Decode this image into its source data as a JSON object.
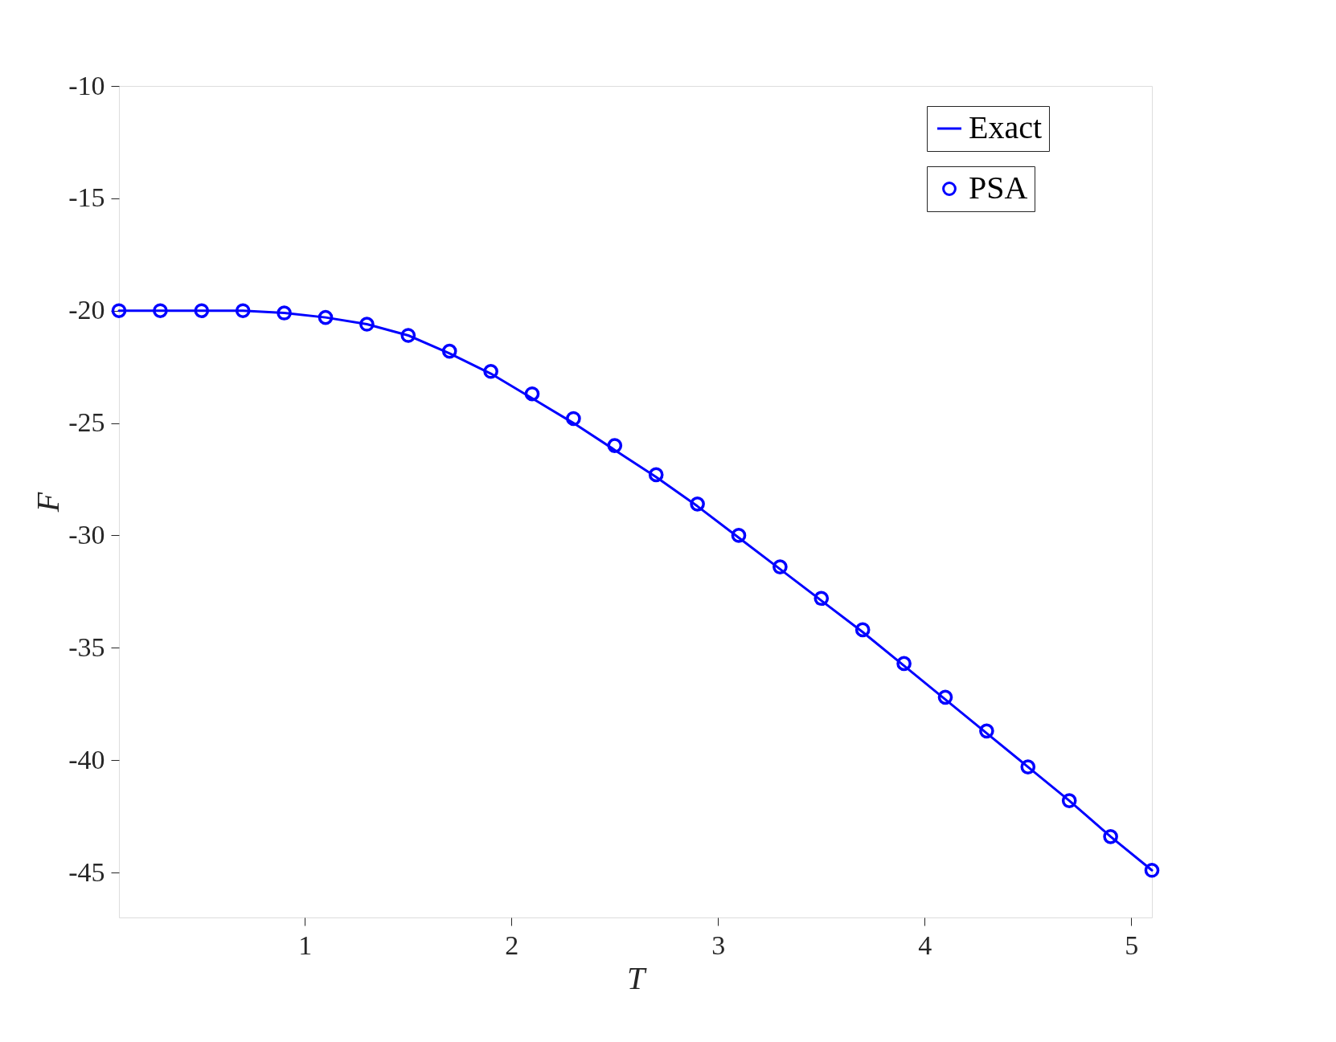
{
  "chart_data": {
    "type": "line",
    "xlabel": "T",
    "ylabel": "F",
    "xlim": [
      0.1,
      5.1
    ],
    "ylim": [
      -47,
      -10
    ],
    "xticks": [
      1,
      2,
      3,
      4,
      5
    ],
    "yticks": [
      -45,
      -40,
      -35,
      -30,
      -25,
      -20,
      -15,
      -10
    ],
    "grid": false,
    "legend": "top right",
    "series": [
      {
        "name": "Exact",
        "color": "#0000ff",
        "marker": "none",
        "line_style": "solid",
        "x": [
          0.1,
          0.3,
          0.5,
          0.7,
          0.9,
          1.1,
          1.3,
          1.5,
          1.7,
          1.9,
          2.1,
          2.3,
          2.5,
          2.7,
          2.9,
          3.1,
          3.3,
          3.5,
          3.7,
          3.9,
          4.1,
          4.3,
          4.5,
          4.7,
          4.9,
          5.1
        ],
        "values": [
          -20.0,
          -20.0,
          -20.0,
          -20.0,
          -20.1,
          -20.3,
          -20.6,
          -21.1,
          -21.9,
          -22.8,
          -23.9,
          -25.0,
          -26.2,
          -27.4,
          -28.7,
          -30.1,
          -31.5,
          -32.9,
          -34.3,
          -35.8,
          -37.3,
          -38.8,
          -40.3,
          -41.8,
          -43.4,
          -44.9
        ]
      },
      {
        "name": "PSA",
        "type": "scatter",
        "color": "#0000ff",
        "marker": "circle",
        "x": [
          0.1,
          0.3,
          0.5,
          0.7,
          0.9,
          1.1,
          1.3,
          1.5,
          1.7,
          1.9,
          2.1,
          2.3,
          2.5,
          2.7,
          2.9,
          3.1,
          3.3,
          3.5,
          3.7,
          3.9,
          4.1,
          4.3,
          4.5,
          4.7,
          4.9,
          5.1
        ],
        "values": [
          -20.0,
          -20.0,
          -20.0,
          -20.0,
          -20.1,
          -20.3,
          -20.6,
          -21.1,
          -21.8,
          -22.7,
          -23.7,
          -24.8,
          -26.0,
          -27.3,
          -28.6,
          -30.0,
          -31.4,
          -32.8,
          -34.2,
          -35.7,
          -37.2,
          -38.7,
          -40.3,
          -41.8,
          -43.4,
          -44.9
        ]
      }
    ]
  }
}
